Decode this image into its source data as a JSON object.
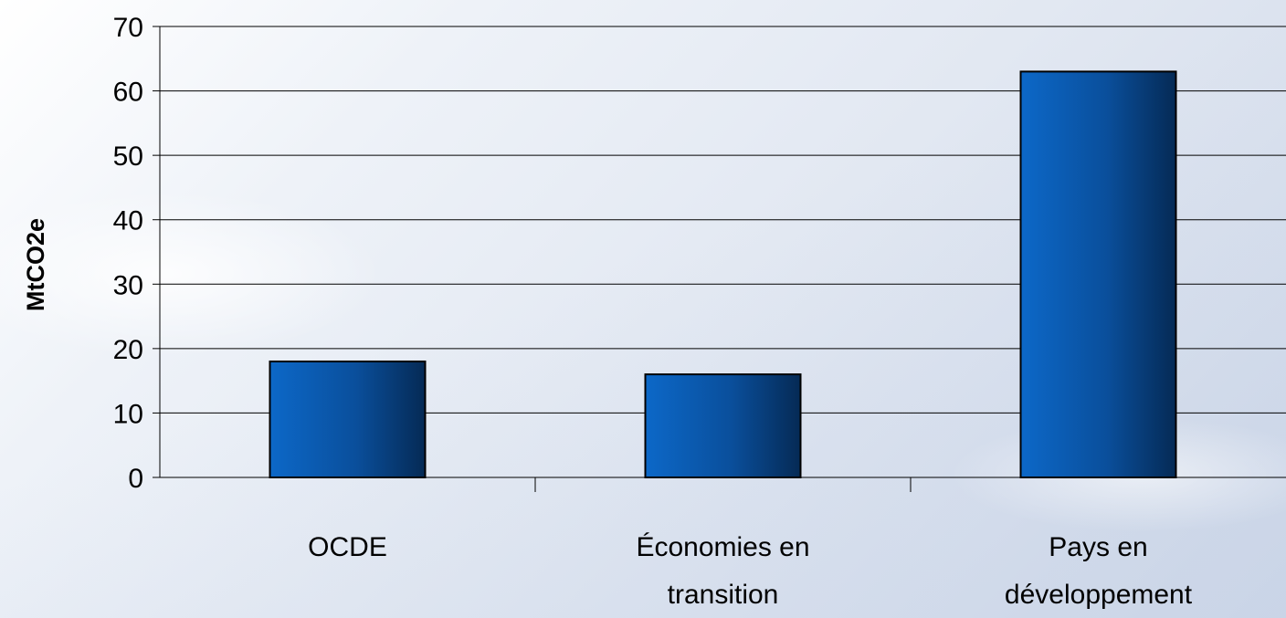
{
  "chart_data": {
    "type": "bar",
    "title": "",
    "xlabel": "",
    "ylabel": "MtCO2e",
    "categories": [
      [
        "OCDE"
      ],
      [
        "Économies en",
        "transition"
      ],
      [
        "Pays en",
        "développement"
      ]
    ],
    "values": [
      18,
      16,
      63
    ],
    "ylim": [
      0,
      70
    ],
    "yticks": [
      0,
      10,
      20,
      30,
      40,
      50,
      60,
      70
    ],
    "grid": true,
    "legend": "none",
    "colors": {
      "bar_light": "#0c68c8",
      "bar_mid": "#0a4f9c",
      "bar_dark": "#052a55",
      "bar_outline": "#000000",
      "grid": "#000000",
      "text": "#000000"
    }
  }
}
